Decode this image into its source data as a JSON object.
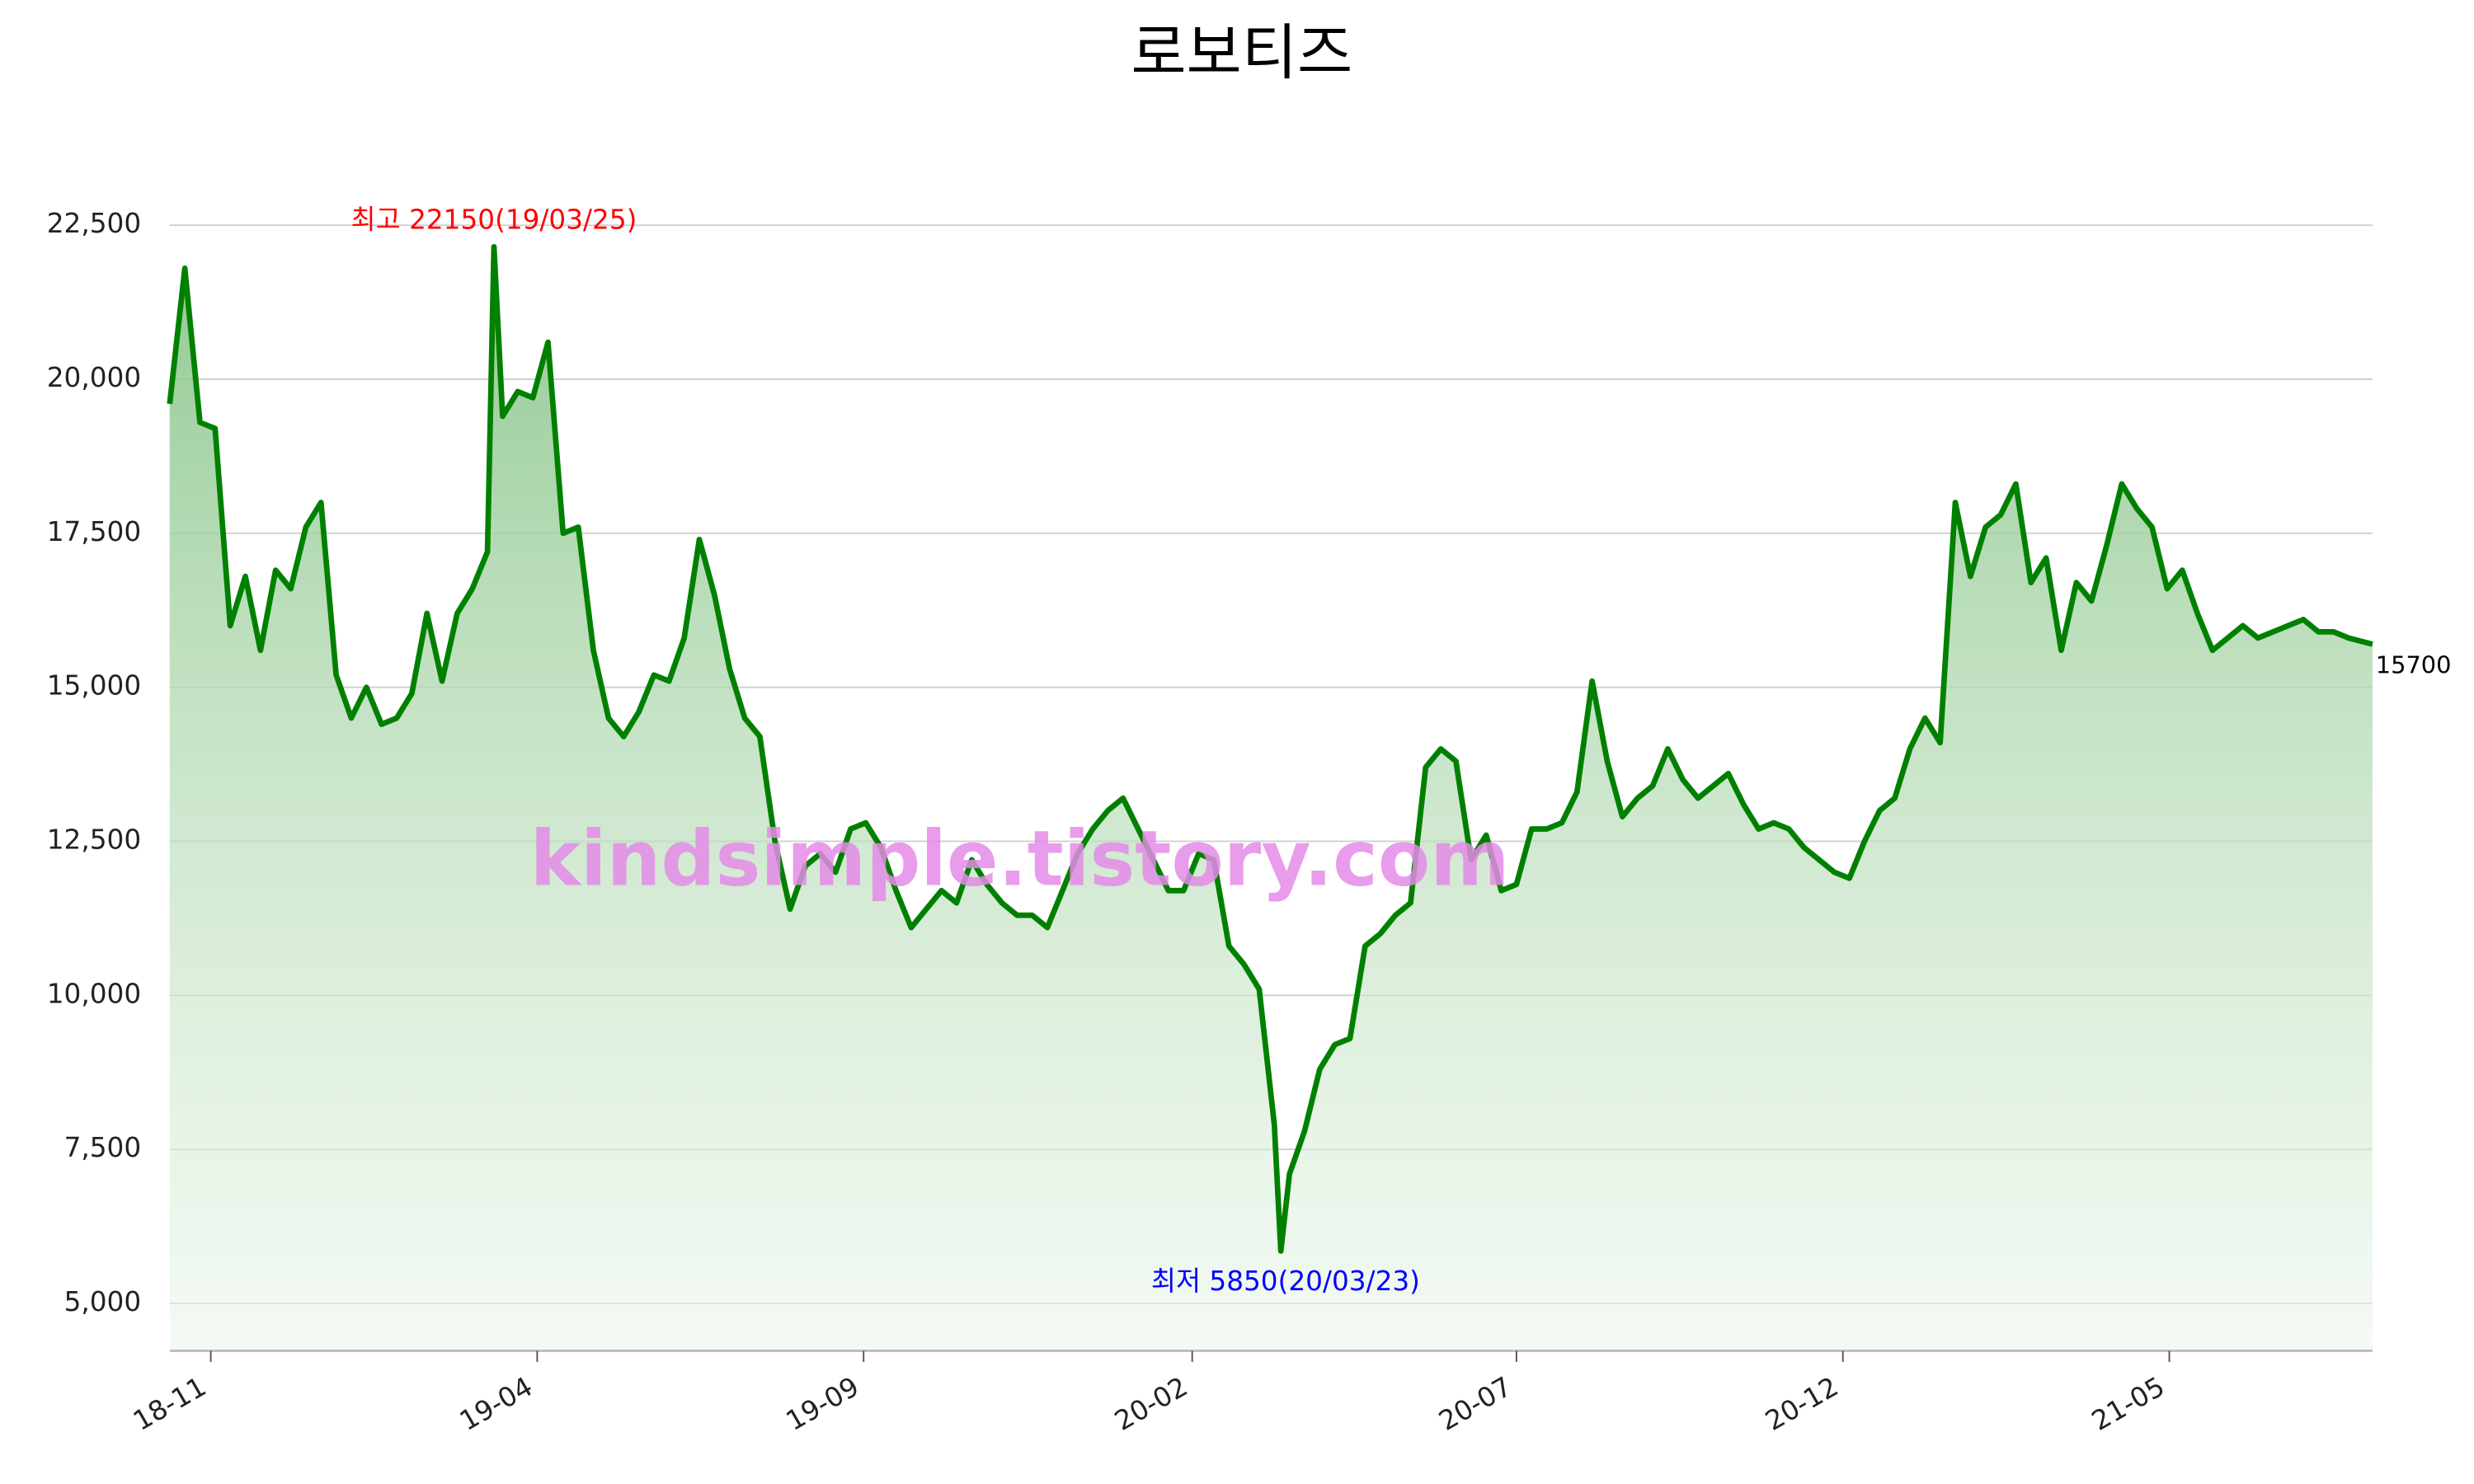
{
  "chart_data": {
    "type": "line",
    "title": "로보티즈",
    "high_label": {
      "text": "최고 22150(19/03/25)",
      "color": "#ff0000"
    },
    "low_label": {
      "text": "최저 5850(20/03/23)",
      "color": "#0000ff"
    },
    "watermark": "kindsimple.tistory.com",
    "grid": true,
    "ylim": [
      4230,
      22800
    ],
    "yticks": [
      {
        "value": 5000,
        "label": "5,000"
      },
      {
        "value": 7500,
        "label": "7,500"
      },
      {
        "value": 10000,
        "label": "10,000"
      },
      {
        "value": 12500,
        "label": "12,500"
      },
      {
        "value": 15000,
        "label": "15,000"
      },
      {
        "value": 17500,
        "label": "17,500"
      },
      {
        "value": 20000,
        "label": "20,000"
      },
      {
        "value": 22500,
        "label": "22,500"
      }
    ],
    "xlim": [
      "2018-10-26",
      "2021-08-10"
    ],
    "xticks": [
      {
        "value": "2018-11-14",
        "label": "18-11"
      },
      {
        "value": "2019-04-14",
        "label": "19-04"
      },
      {
        "value": "2019-09-12",
        "label": "19-09"
      },
      {
        "value": "2020-02-11",
        "label": "20-02"
      },
      {
        "value": "2020-07-10",
        "label": "20-07"
      },
      {
        "value": "2020-12-08",
        "label": "20-12"
      },
      {
        "value": "2021-05-08",
        "label": "21-05"
      }
    ],
    "x": [
      "2018-10-26",
      "2018-11-02",
      "2018-11-09",
      "2018-11-16",
      "2018-11-23",
      "2018-11-30",
      "2018-12-07",
      "2018-12-14",
      "2018-12-21",
      "2018-12-28",
      "2019-01-04",
      "2019-01-11",
      "2019-01-18",
      "2019-01-25",
      "2019-02-01",
      "2019-02-08",
      "2019-02-15",
      "2019-02-22",
      "2019-03-01",
      "2019-03-08",
      "2019-03-15",
      "2019-03-22",
      "2019-03-25",
      "2019-03-29",
      "2019-04-05",
      "2019-04-12",
      "2019-04-19",
      "2019-04-26",
      "2019-05-03",
      "2019-05-10",
      "2019-05-17",
      "2019-05-24",
      "2019-05-31",
      "2019-06-07",
      "2019-06-14",
      "2019-06-21",
      "2019-06-28",
      "2019-07-05",
      "2019-07-12",
      "2019-07-19",
      "2019-07-26",
      "2019-08-02",
      "2019-08-09",
      "2019-08-16",
      "2019-08-23",
      "2019-08-30",
      "2019-09-06",
      "2019-09-13",
      "2019-09-20",
      "2019-09-27",
      "2019-10-04",
      "2019-10-11",
      "2019-10-18",
      "2019-10-25",
      "2019-11-01",
      "2019-11-08",
      "2019-11-15",
      "2019-11-22",
      "2019-11-29",
      "2019-12-06",
      "2019-12-13",
      "2019-12-20",
      "2019-12-27",
      "2020-01-03",
      "2020-01-10",
      "2020-01-17",
      "2020-01-24",
      "2020-01-31",
      "2020-02-07",
      "2020-02-14",
      "2020-02-21",
      "2020-02-28",
      "2020-03-06",
      "2020-03-13",
      "2020-03-20",
      "2020-03-23",
      "2020-03-27",
      "2020-04-03",
      "2020-04-10",
      "2020-04-17",
      "2020-04-24",
      "2020-05-01",
      "2020-05-08",
      "2020-05-15",
      "2020-05-22",
      "2020-05-29",
      "2020-06-05",
      "2020-06-12",
      "2020-06-19",
      "2020-06-26",
      "2020-07-03",
      "2020-07-10",
      "2020-07-17",
      "2020-07-24",
      "2020-07-31",
      "2020-08-07",
      "2020-08-14",
      "2020-08-21",
      "2020-08-28",
      "2020-09-04",
      "2020-09-11",
      "2020-09-18",
      "2020-09-25",
      "2020-10-02",
      "2020-10-09",
      "2020-10-16",
      "2020-10-23",
      "2020-10-30",
      "2020-11-06",
      "2020-11-13",
      "2020-11-20",
      "2020-11-27",
      "2020-12-04",
      "2020-12-11",
      "2020-12-18",
      "2020-12-25",
      "2021-01-01",
      "2021-01-08",
      "2021-01-15",
      "2021-01-22",
      "2021-01-29",
      "2021-02-05",
      "2021-02-12",
      "2021-02-19",
      "2021-02-26",
      "2021-03-05",
      "2021-03-12",
      "2021-03-19",
      "2021-03-26",
      "2021-04-02",
      "2021-04-09",
      "2021-04-16",
      "2021-04-23",
      "2021-04-30",
      "2021-05-07",
      "2021-05-14",
      "2021-05-21",
      "2021-05-28",
      "2021-06-04",
      "2021-06-11",
      "2021-06-18",
      "2021-06-25",
      "2021-07-02",
      "2021-07-09",
      "2021-07-16",
      "2021-07-23",
      "2021-07-30",
      "2021-08-10"
    ],
    "series": [
      {
        "name": "로보티즈",
        "color": "#008000",
        "values": [
          19600,
          21800,
          19300,
          19200,
          16000,
          16800,
          15600,
          16900,
          16600,
          17600,
          18000,
          15200,
          14500,
          15000,
          14400,
          14500,
          14900,
          16200,
          15100,
          16200,
          16600,
          17200,
          22150,
          19400,
          19800,
          19700,
          20600,
          17500,
          17600,
          15600,
          14500,
          14200,
          14600,
          15200,
          15100,
          15800,
          17400,
          16500,
          15300,
          14500,
          14200,
          12500,
          11400,
          12100,
          12300,
          12000,
          12700,
          12800,
          12400,
          11700,
          11100,
          11400,
          11700,
          11500,
          12200,
          11800,
          11500,
          11300,
          11300,
          11100,
          11700,
          12300,
          12700,
          13000,
          13200,
          12700,
          12200,
          11700,
          11700,
          12300,
          12200,
          10800,
          10500,
          10100,
          7900,
          5850,
          7100,
          7800,
          8800,
          9200,
          9300,
          10800,
          11000,
          11300,
          11500,
          13700,
          14000,
          13800,
          12200,
          12600,
          11700,
          11800,
          12700,
          12700,
          12800,
          13300,
          15100,
          13800,
          12900,
          13200,
          13400,
          14000,
          13500,
          13200,
          13400,
          13600,
          13100,
          12700,
          12800,
          12700,
          12400,
          12200,
          12000,
          11900,
          12500,
          13000,
          13200,
          14000,
          14500,
          14100,
          18000,
          16800,
          17600,
          17800,
          18300,
          16700,
          17100,
          15600,
          16700,
          16400,
          17300,
          18300,
          17900,
          17600,
          16600,
          16900,
          16200,
          15600,
          15800,
          16000,
          15800,
          15900,
          16000,
          16100,
          15900,
          15900,
          15800,
          15700
        ]
      }
    ]
  }
}
